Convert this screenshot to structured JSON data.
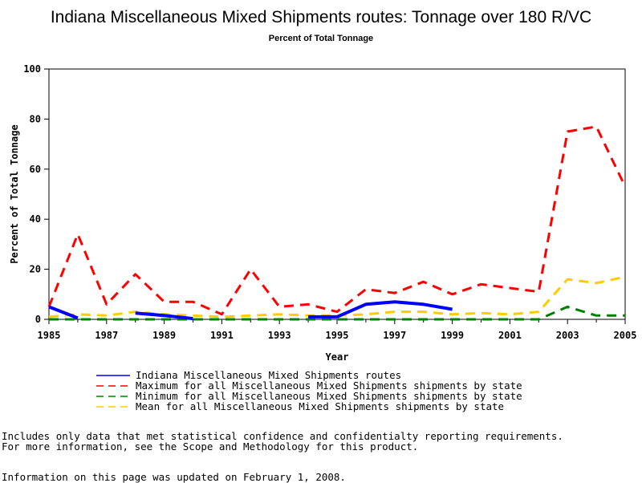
{
  "chart_data": {
    "type": "line",
    "title": "Indiana Miscellaneous Mixed Shipments routes: Tonnage over 180 R/VC",
    "subtitle": "Percent of Total Tonnage",
    "xlabel": "Year",
    "ylabel": "Percent of Total Tonnage",
    "xlim": [
      1985,
      2005
    ],
    "ylim": [
      0,
      100
    ],
    "xticks": [
      "1985",
      "1987",
      "1989",
      "1991",
      "1993",
      "1995",
      "1997",
      "1999",
      "2001",
      "2003",
      "2005"
    ],
    "yticks": [
      "0",
      "20",
      "40",
      "60",
      "80",
      "100"
    ],
    "grid": false,
    "legend_position": "bottom",
    "series": [
      {
        "name": "Indiana Miscellaneous Mixed Shipments routes",
        "color": "#0000ff",
        "style": "solid",
        "points": [
          [
            1985,
            5
          ],
          [
            1986,
            0.5
          ],
          [
            1987,
            null
          ],
          [
            1988,
            2.5
          ],
          [
            1989,
            1.5
          ],
          [
            1990,
            0.3
          ],
          [
            1991,
            null
          ],
          [
            1992,
            null
          ],
          [
            1993,
            null
          ],
          [
            1994,
            1
          ],
          [
            1995,
            1
          ],
          [
            1996,
            6
          ],
          [
            1997,
            7
          ],
          [
            1998,
            6
          ],
          [
            1999,
            4
          ]
        ]
      },
      {
        "name": "Maximum for all Miscellaneous Mixed Shipments shipments by state",
        "color": "#ff0000",
        "style": "dashed",
        "points": [
          [
            1985,
            5
          ],
          [
            1986,
            34
          ],
          [
            1987,
            6
          ],
          [
            1988,
            18
          ],
          [
            1989,
            7
          ],
          [
            1990,
            7
          ],
          [
            1991,
            2
          ],
          [
            1992,
            20
          ],
          [
            1993,
            5
          ],
          [
            1994,
            6
          ],
          [
            1995,
            3
          ],
          [
            1996,
            12
          ],
          [
            1997,
            10.5
          ],
          [
            1998,
            15
          ],
          [
            1999,
            10
          ],
          [
            2000,
            14
          ],
          [
            2001,
            12.5
          ],
          [
            2002,
            11
          ],
          [
            2003,
            75
          ],
          [
            2004,
            77
          ],
          [
            2005,
            53
          ]
        ]
      },
      {
        "name": "Minimum for all Miscellaneous Mixed Shipments shipments by state",
        "color": "#008000",
        "style": "dashed",
        "points": [
          [
            1985,
            0
          ],
          [
            1986,
            0
          ],
          [
            1987,
            0
          ],
          [
            1988,
            0
          ],
          [
            1989,
            0
          ],
          [
            1990,
            0
          ],
          [
            1991,
            0
          ],
          [
            1992,
            0
          ],
          [
            1993,
            0
          ],
          [
            1994,
            0
          ],
          [
            1995,
            0
          ],
          [
            1996,
            0
          ],
          [
            1997,
            0
          ],
          [
            1998,
            0
          ],
          [
            1999,
            0
          ],
          [
            2000,
            0
          ],
          [
            2001,
            0
          ],
          [
            2002,
            0
          ],
          [
            2003,
            5
          ],
          [
            2004,
            1.5
          ],
          [
            2005,
            1.5
          ]
        ]
      },
      {
        "name": "Mean for all Miscellaneous Mixed Shipments shipments by state",
        "color": "#ffcc00",
        "style": "dashed",
        "points": [
          [
            1985,
            1
          ],
          [
            1986,
            2
          ],
          [
            1987,
            1.5
          ],
          [
            1988,
            3
          ],
          [
            1989,
            2
          ],
          [
            1990,
            1.5
          ],
          [
            1991,
            1
          ],
          [
            1992,
            1.5
          ],
          [
            1993,
            2
          ],
          [
            1994,
            1.5
          ],
          [
            1995,
            1.5
          ],
          [
            1996,
            2
          ],
          [
            1997,
            3
          ],
          [
            1998,
            3
          ],
          [
            1999,
            2
          ],
          [
            2000,
            2.5
          ],
          [
            2001,
            2
          ],
          [
            2002,
            3
          ],
          [
            2003,
            16
          ],
          [
            2004,
            14.5
          ],
          [
            2005,
            17
          ]
        ]
      }
    ]
  },
  "notes": {
    "line1": "Includes only data that met statistical confidence and confidentialty reporting requirements.",
    "line2": "For more information, see the Scope and Methodology for this product.",
    "updated": "Information on this page was updated on February 1, 2008."
  }
}
